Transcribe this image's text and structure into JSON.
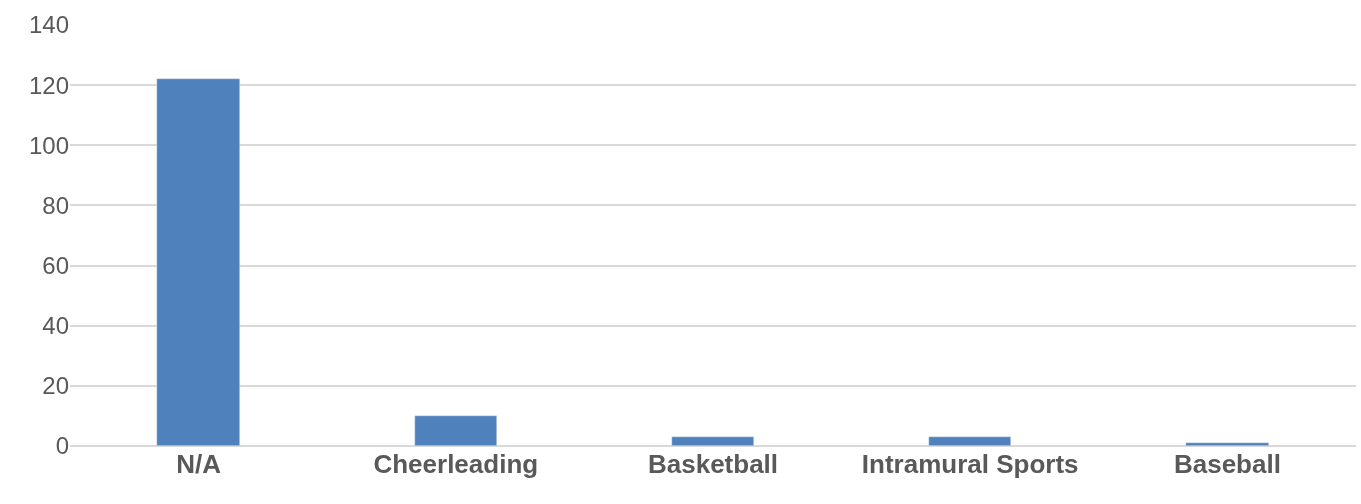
{
  "chart_data": {
    "type": "bar",
    "categories": [
      "N/A",
      "Cheerleading",
      "Basketball",
      "Intramural Sports",
      "Baseball"
    ],
    "values": [
      122,
      10,
      3,
      3,
      1
    ],
    "color": "#4f81bd",
    "ylim": [
      0,
      140
    ],
    "yticks": [
      0,
      20,
      40,
      60,
      80,
      100,
      120,
      140
    ],
    "grid": "y"
  }
}
